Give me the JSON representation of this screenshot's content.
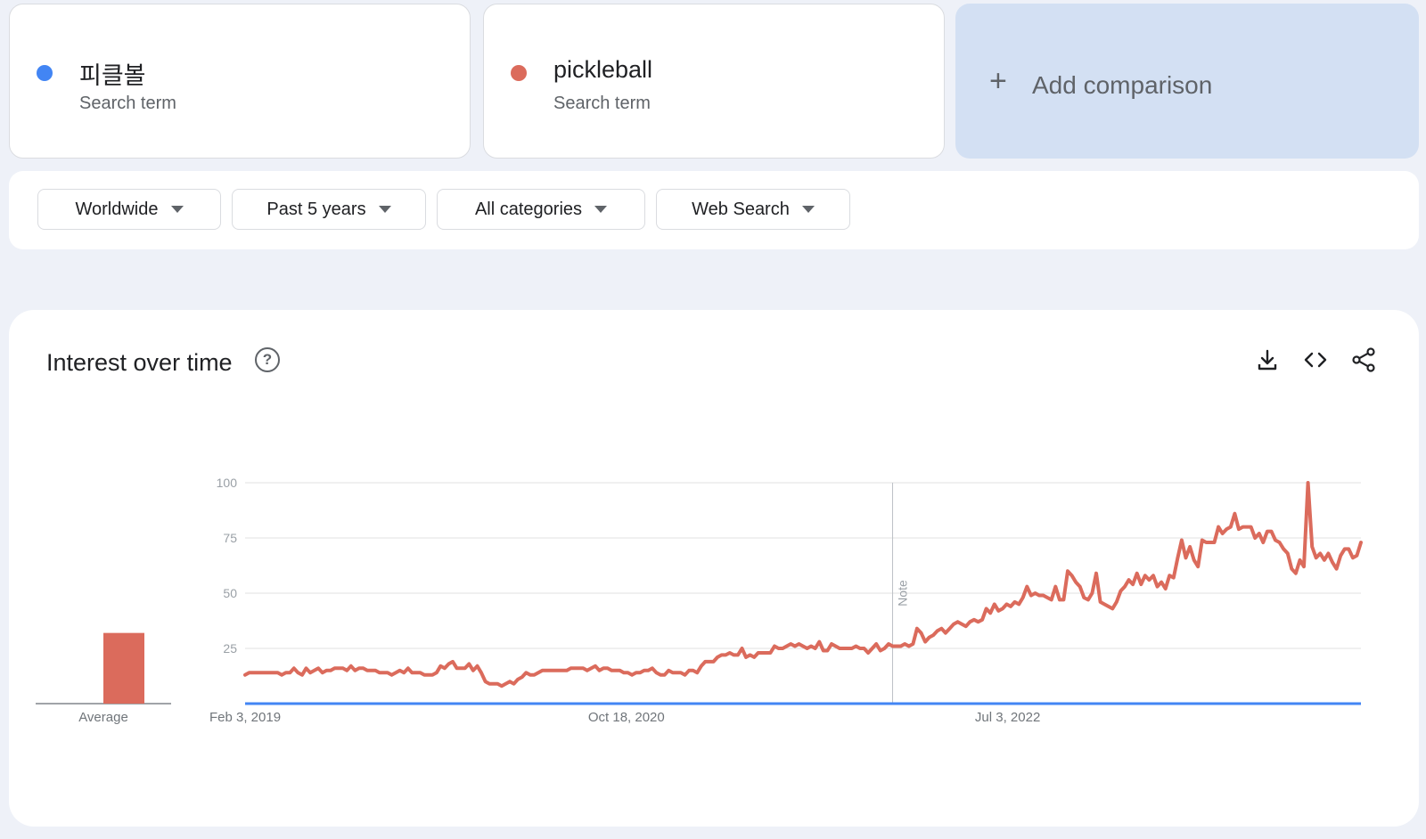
{
  "terms": [
    {
      "name": "피클볼",
      "type": "Search term",
      "color": "#4285f4"
    },
    {
      "name": "pickleball",
      "type": "Search term",
      "color": "#db6b5c"
    }
  ],
  "add_comparison": {
    "label": "Add comparison",
    "icon": "plus-icon"
  },
  "filters": [
    {
      "label": "Worldwide"
    },
    {
      "label": "Past 5 years"
    },
    {
      "label": "All categories"
    },
    {
      "label": "Web Search"
    }
  ],
  "chart_section": {
    "title": "Interest over time",
    "icons": [
      "help-icon",
      "download-icon",
      "embed-icon",
      "share-icon"
    ]
  },
  "chart_data": {
    "type": "line",
    "title": "Interest over time",
    "ylim": [
      0,
      100
    ],
    "yticks": [
      25,
      50,
      75,
      100
    ],
    "grid": true,
    "x_tick_labels": [
      "Feb 3, 2019",
      "Oct 18, 2020",
      "Jul 3, 2022"
    ],
    "annotation": "Note",
    "series": [
      {
        "name": "pickleball",
        "color": "#db6b5c",
        "values": [
          13,
          14,
          14,
          14,
          14,
          14,
          14,
          14,
          14,
          13,
          14,
          14,
          16,
          14,
          13,
          16,
          14,
          15,
          16,
          14,
          15,
          15,
          16,
          16,
          16,
          15,
          17,
          15,
          16,
          16,
          15,
          15,
          15,
          14,
          14,
          14,
          13,
          14,
          15,
          14,
          16,
          14,
          14,
          14,
          13,
          13,
          13,
          14,
          17,
          16,
          18,
          19,
          16,
          16,
          16,
          18,
          15,
          17,
          14,
          10,
          9,
          9,
          9,
          8,
          9,
          10,
          9,
          11,
          12,
          14,
          13,
          13,
          14,
          15,
          15,
          15,
          15,
          15,
          15,
          15,
          16,
          16,
          16,
          16,
          15,
          16,
          17,
          15,
          16,
          16,
          15,
          15,
          15,
          14,
          14,
          13,
          14,
          14,
          15,
          15,
          16,
          14,
          13,
          13,
          15,
          14,
          14,
          14,
          13,
          15,
          15,
          14,
          17,
          19,
          19,
          19,
          21,
          22,
          22,
          23,
          22,
          22,
          25,
          21,
          22,
          21,
          23,
          23,
          23,
          23,
          26,
          25,
          25,
          26,
          27,
          26,
          27,
          26,
          25,
          26,
          25,
          28,
          24,
          24,
          27,
          26,
          25,
          25,
          25,
          25,
          26,
          25,
          25,
          23,
          25,
          27,
          24,
          25,
          27,
          26,
          26,
          26,
          27,
          26,
          27,
          34,
          32,
          28,
          30,
          31,
          33,
          34,
          32,
          34,
          36,
          37,
          36,
          35,
          37,
          38,
          37,
          38,
          43,
          41,
          45,
          42,
          43,
          45,
          44,
          46,
          45,
          48,
          53,
          49,
          50,
          49,
          49,
          48,
          47,
          53,
          47,
          47,
          60,
          58,
          55,
          53,
          48,
          47,
          50,
          59,
          46,
          45,
          44,
          43,
          46,
          51,
          53,
          56,
          54,
          59,
          54,
          58,
          56,
          58,
          53,
          55,
          52,
          58,
          57,
          66,
          74,
          66,
          71,
          65,
          62,
          74,
          73,
          73,
          73,
          80,
          77,
          79,
          80,
          86,
          79,
          80,
          80,
          80,
          75,
          77,
          73,
          78,
          78,
          74,
          73,
          70,
          68,
          61,
          59,
          65,
          62,
          100,
          71,
          66,
          68,
          65,
          68,
          64,
          61,
          67,
          70,
          70,
          66,
          67,
          73
        ]
      },
      {
        "name": "피클볼",
        "color": "#4285f4",
        "values": [
          0,
          0
        ]
      }
    ],
    "average": {
      "label": "Average",
      "categories": [
        "피클볼",
        "pickleball"
      ],
      "values": [
        0,
        32
      ]
    }
  }
}
